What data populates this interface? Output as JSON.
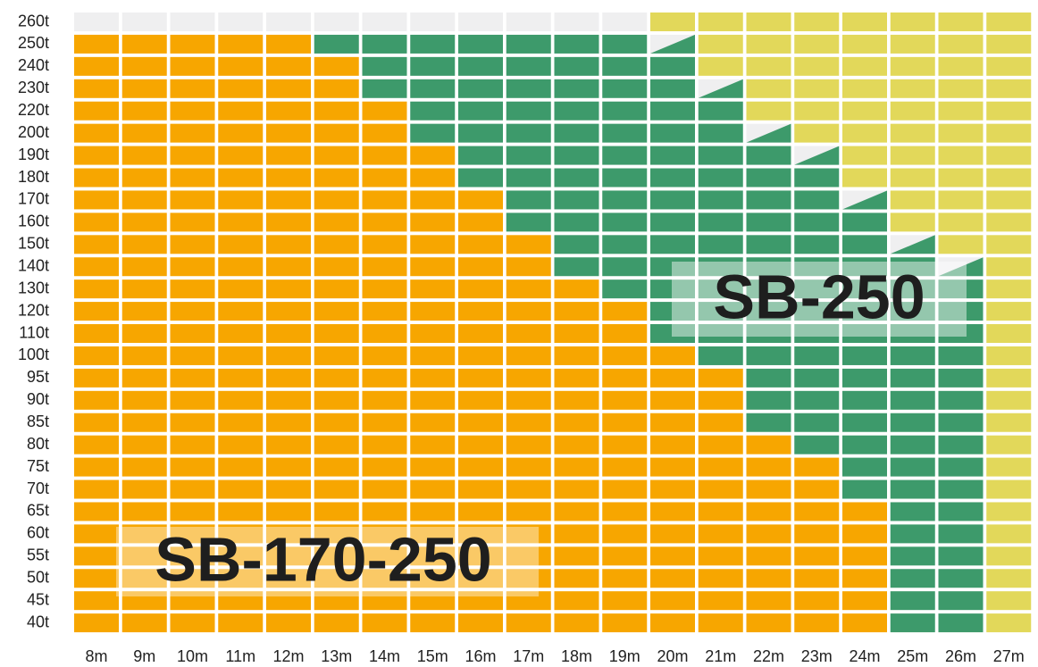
{
  "chart_data": {
    "type": "grid",
    "rows": [
      "260t",
      "250t",
      "240t",
      "230t",
      "220t",
      "200t",
      "190t",
      "180t",
      "170t",
      "160t",
      "150t",
      "140t",
      "130t",
      "120t",
      "110t",
      "100t",
      "95t",
      "90t",
      "85t",
      "80t",
      "75t",
      "70t",
      "65t",
      "60t",
      "55t",
      "50t",
      "45t",
      "40t"
    ],
    "columns": [
      "8m",
      "9m",
      "10m",
      "11m",
      "12m",
      "13m",
      "14m",
      "15m",
      "16m",
      "17m",
      "18m",
      "19m",
      "20m",
      "21m",
      "22m",
      "23m",
      "24m",
      "25m",
      "26m",
      "27m"
    ],
    "series": [
      {
        "name": "SB-170-250",
        "color": "#f7a600"
      },
      {
        "name": "SB-250",
        "color": "#3d9a6b"
      }
    ],
    "palette": [
      "#f7a600",
      "#3d9a6b",
      "#e2d85a",
      "#efeff0"
    ],
    "cells": [
      [
        3,
        3,
        3,
        3,
        3,
        3,
        3,
        3,
        3,
        3,
        3,
        3,
        2,
        2,
        2,
        2,
        2,
        2,
        2,
        2
      ],
      [
        0,
        0,
        0,
        0,
        0,
        1,
        1,
        1,
        1,
        1,
        1,
        1,
        4,
        2,
        2,
        2,
        2,
        2,
        2,
        2
      ],
      [
        0,
        0,
        0,
        0,
        0,
        0,
        1,
        1,
        1,
        1,
        1,
        1,
        1,
        2,
        2,
        2,
        2,
        2,
        2,
        2
      ],
      [
        0,
        0,
        0,
        0,
        0,
        0,
        1,
        1,
        1,
        1,
        1,
        1,
        1,
        4,
        2,
        2,
        2,
        2,
        2,
        2
      ],
      [
        0,
        0,
        0,
        0,
        0,
        0,
        0,
        1,
        1,
        1,
        1,
        1,
        1,
        1,
        2,
        2,
        2,
        2,
        2,
        2
      ],
      [
        0,
        0,
        0,
        0,
        0,
        0,
        0,
        1,
        1,
        1,
        1,
        1,
        1,
        1,
        4,
        2,
        2,
        2,
        2,
        2
      ],
      [
        0,
        0,
        0,
        0,
        0,
        0,
        0,
        0,
        1,
        1,
        1,
        1,
        1,
        1,
        1,
        4,
        2,
        2,
        2,
        2
      ],
      [
        0,
        0,
        0,
        0,
        0,
        0,
        0,
        0,
        1,
        1,
        1,
        1,
        1,
        1,
        1,
        1,
        2,
        2,
        2,
        2
      ],
      [
        0,
        0,
        0,
        0,
        0,
        0,
        0,
        0,
        0,
        1,
        1,
        1,
        1,
        1,
        1,
        1,
        4,
        2,
        2,
        2
      ],
      [
        0,
        0,
        0,
        0,
        0,
        0,
        0,
        0,
        0,
        1,
        1,
        1,
        1,
        1,
        1,
        1,
        1,
        2,
        2,
        2
      ],
      [
        0,
        0,
        0,
        0,
        0,
        0,
        0,
        0,
        0,
        0,
        1,
        1,
        1,
        1,
        1,
        1,
        1,
        4,
        2,
        2
      ],
      [
        0,
        0,
        0,
        0,
        0,
        0,
        0,
        0,
        0,
        0,
        1,
        1,
        1,
        1,
        1,
        1,
        1,
        1,
        4,
        2
      ],
      [
        0,
        0,
        0,
        0,
        0,
        0,
        0,
        0,
        0,
        0,
        0,
        1,
        1,
        1,
        1,
        1,
        1,
        1,
        1,
        2
      ],
      [
        0,
        0,
        0,
        0,
        0,
        0,
        0,
        0,
        0,
        0,
        0,
        0,
        1,
        1,
        1,
        1,
        1,
        1,
        1,
        2
      ],
      [
        0,
        0,
        0,
        0,
        0,
        0,
        0,
        0,
        0,
        0,
        0,
        0,
        1,
        1,
        1,
        1,
        1,
        1,
        1,
        2
      ],
      [
        0,
        0,
        0,
        0,
        0,
        0,
        0,
        0,
        0,
        0,
        0,
        0,
        0,
        1,
        1,
        1,
        1,
        1,
        1,
        2
      ],
      [
        0,
        0,
        0,
        0,
        0,
        0,
        0,
        0,
        0,
        0,
        0,
        0,
        0,
        0,
        1,
        1,
        1,
        1,
        1,
        2
      ],
      [
        0,
        0,
        0,
        0,
        0,
        0,
        0,
        0,
        0,
        0,
        0,
        0,
        0,
        0,
        1,
        1,
        1,
        1,
        1,
        2
      ],
      [
        0,
        0,
        0,
        0,
        0,
        0,
        0,
        0,
        0,
        0,
        0,
        0,
        0,
        0,
        1,
        1,
        1,
        1,
        1,
        2
      ],
      [
        0,
        0,
        0,
        0,
        0,
        0,
        0,
        0,
        0,
        0,
        0,
        0,
        0,
        0,
        0,
        1,
        1,
        1,
        1,
        2
      ],
      [
        0,
        0,
        0,
        0,
        0,
        0,
        0,
        0,
        0,
        0,
        0,
        0,
        0,
        0,
        0,
        0,
        1,
        1,
        1,
        2
      ],
      [
        0,
        0,
        0,
        0,
        0,
        0,
        0,
        0,
        0,
        0,
        0,
        0,
        0,
        0,
        0,
        0,
        1,
        1,
        1,
        2
      ],
      [
        0,
        0,
        0,
        0,
        0,
        0,
        0,
        0,
        0,
        0,
        0,
        0,
        0,
        0,
        0,
        0,
        0,
        1,
        1,
        2
      ],
      [
        0,
        0,
        0,
        0,
        0,
        0,
        0,
        0,
        0,
        0,
        0,
        0,
        0,
        0,
        0,
        0,
        0,
        1,
        1,
        2
      ],
      [
        0,
        0,
        0,
        0,
        0,
        0,
        0,
        0,
        0,
        0,
        0,
        0,
        0,
        0,
        0,
        0,
        0,
        1,
        1,
        2
      ],
      [
        0,
        0,
        0,
        0,
        0,
        0,
        0,
        0,
        0,
        0,
        0,
        0,
        0,
        0,
        0,
        0,
        0,
        1,
        1,
        2
      ],
      [
        0,
        0,
        0,
        0,
        0,
        0,
        0,
        0,
        0,
        0,
        0,
        0,
        0,
        0,
        0,
        0,
        0,
        1,
        1,
        2
      ],
      [
        0,
        0,
        0,
        0,
        0,
        0,
        0,
        0,
        0,
        0,
        0,
        0,
        0,
        0,
        0,
        0,
        0,
        1,
        1,
        2
      ]
    ]
  }
}
